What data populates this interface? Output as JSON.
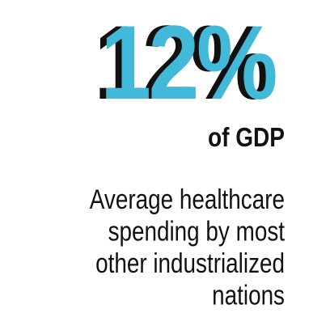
{
  "stat": {
    "value": "12%",
    "unit": "of GDP",
    "description": [
      "Average healthcare",
      "spending by most",
      "other industrialized",
      "nations"
    ]
  }
}
